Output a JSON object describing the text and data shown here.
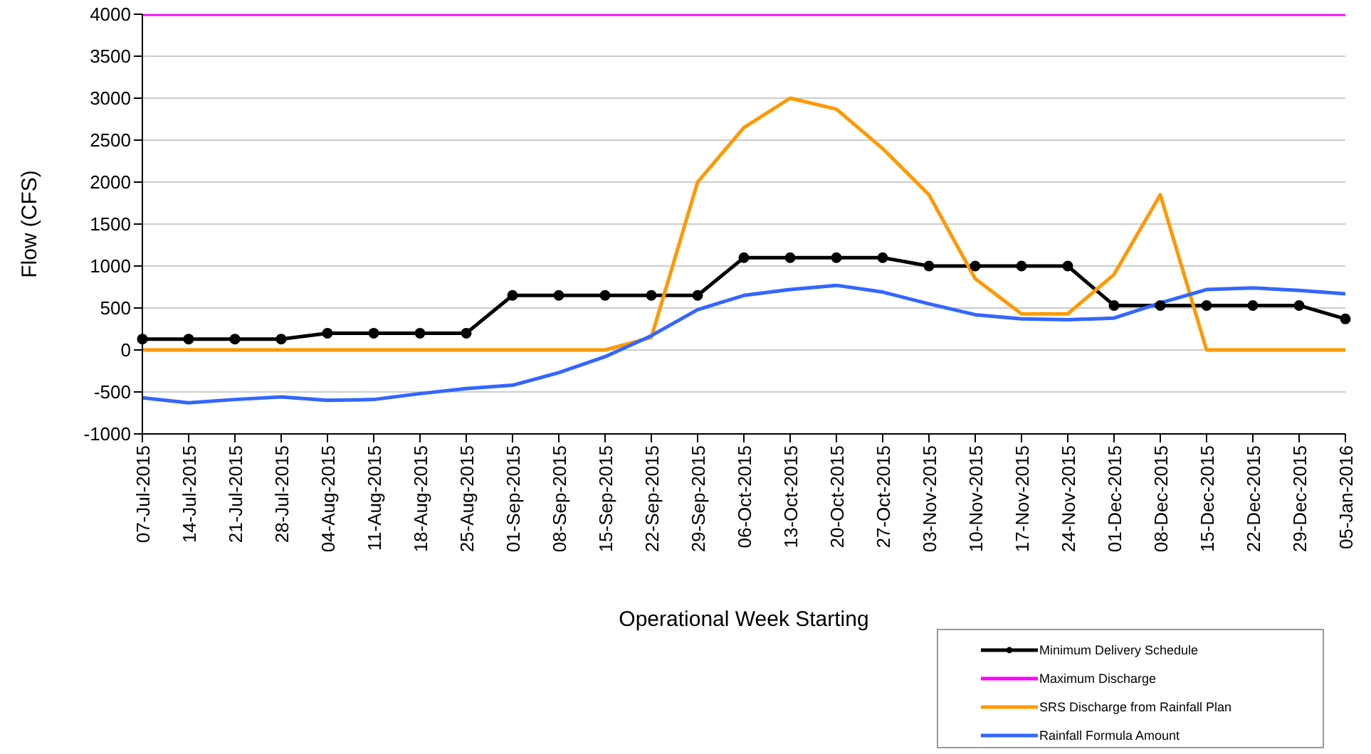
{
  "chart_data": {
    "type": "line",
    "xlabel": "Operational Week Starting",
    "ylabel": "Flow (CFS)",
    "categories": [
      "07-Jul-2015",
      "14-Jul-2015",
      "21-Jul-2015",
      "28-Jul-2015",
      "04-Aug-2015",
      "11-Aug-2015",
      "18-Aug-2015",
      "25-Aug-2015",
      "01-Sep-2015",
      "08-Sep-2015",
      "15-Sep-2015",
      "22-Sep-2015",
      "29-Sep-2015",
      "06-Oct-2015",
      "13-Oct-2015",
      "20-Oct-2015",
      "27-Oct-2015",
      "03-Nov-2015",
      "10-Nov-2015",
      "17-Nov-2015",
      "24-Nov-2015",
      "01-Dec-2015",
      "08-Dec-2015",
      "15-Dec-2015",
      "22-Dec-2015",
      "29-Dec-2015",
      "05-Jan-2016"
    ],
    "series": [
      {
        "name": "Minimum Delivery Schedule",
        "color": "#000000",
        "marker": "circle",
        "values": [
          130,
          130,
          130,
          130,
          200,
          200,
          200,
          200,
          650,
          650,
          650,
          650,
          650,
          1100,
          1100,
          1100,
          1100,
          1000,
          1000,
          1000,
          1000,
          530,
          530,
          530,
          530,
          530,
          370
        ]
      },
      {
        "name": "Maximum Discharge",
        "color": "#ff00ff",
        "values": [
          4000,
          4000,
          4000,
          4000,
          4000,
          4000,
          4000,
          4000,
          4000,
          4000,
          4000,
          4000,
          4000,
          4000,
          4000,
          4000,
          4000,
          4000,
          4000,
          4000,
          4000,
          4000,
          4000,
          4000,
          4000,
          4000,
          4000
        ]
      },
      {
        "name": "SRS Discharge from Rainfall Plan",
        "color": "#ff9900",
        "values": [
          0,
          0,
          0,
          0,
          0,
          0,
          0,
          0,
          0,
          0,
          0,
          150,
          2000,
          2650,
          3000,
          2870,
          2400,
          1850,
          850,
          430,
          430,
          900,
          1850,
          0,
          0,
          0,
          0
        ]
      },
      {
        "name": "Rainfall Formula Amount",
        "color": "#3366ff",
        "values": [
          -570,
          -630,
          -590,
          -560,
          -600,
          -590,
          -520,
          -460,
          -420,
          -270,
          -80,
          170,
          480,
          650,
          720,
          770,
          690,
          550,
          420,
          370,
          360,
          380,
          560,
          720,
          740,
          710,
          670
        ]
      }
    ],
    "ylim": [
      -1000,
      4000
    ],
    "yticks": [
      -1000,
      -500,
      0,
      500,
      1000,
      1500,
      2000,
      2500,
      3000,
      3500,
      4000
    ],
    "grid": "y",
    "legend": "bottom right",
    "line_style": "solid"
  }
}
